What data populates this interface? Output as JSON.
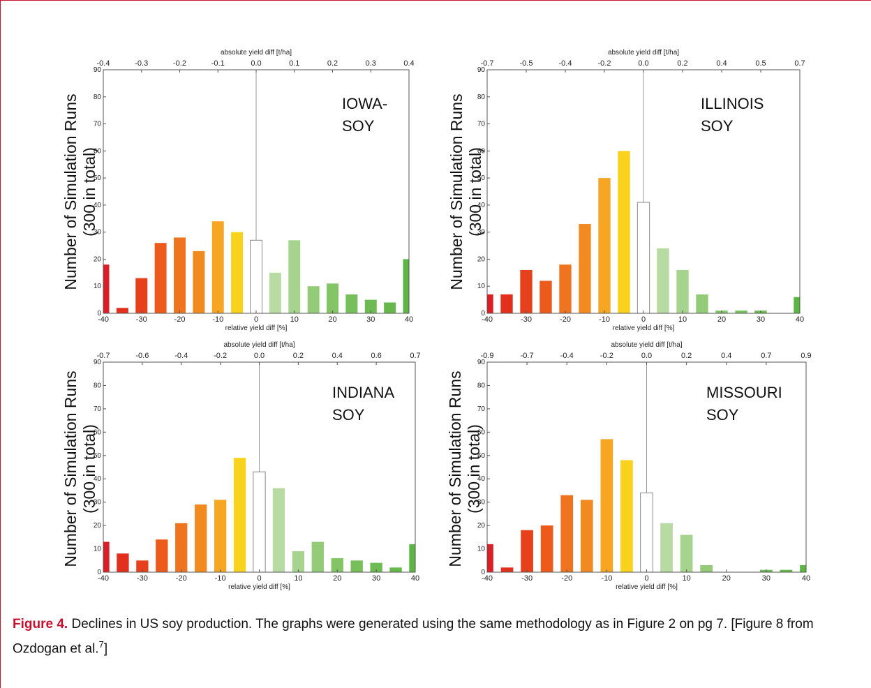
{
  "charts": [
    {
      "id": "iowa",
      "state_label": [
        "IOWA-",
        "SOY"
      ],
      "ylabel": [
        "Number of Simulation Runs",
        "(300 in total)"
      ],
      "top_xlabel": "absolute yield diff [t/ha]",
      "top_ticks": [
        "-0.4",
        "-0.3",
        "-0.2",
        "-0.1",
        "0.0",
        "0.1",
        "0.2",
        "0.3",
        "0.4"
      ],
      "bottom_xlabel": "relative yield diff [%]"
    },
    {
      "id": "illinois",
      "state_label": [
        "ILLINOIS",
        "SOY"
      ],
      "ylabel": [
        "Number of Simulation Runs",
        "(300 in total)"
      ],
      "top_xlabel": "absolute yield diff [t/ha]",
      "top_ticks": [
        "-0.7",
        "-0.5",
        "-0.4",
        "-0.2",
        "0.0",
        "0.2",
        "0.4",
        "0.5",
        "0.7"
      ],
      "bottom_xlabel": "relative yield diff [%]"
    },
    {
      "id": "indiana",
      "state_label": [
        "INDIANA",
        "SOY"
      ],
      "ylabel": [
        "Number of Simulation Runs",
        "(300 in total)"
      ],
      "top_xlabel": "absolute yield diff [t/ha]",
      "top_ticks": [
        "-0.7",
        "-0.6",
        "-0.4",
        "-0.2",
        "0.0",
        "0.2",
        "0.4",
        "0.6",
        "0.7"
      ],
      "bottom_xlabel": "relative yield diff [%]"
    },
    {
      "id": "missouri",
      "state_label": [
        "MISSOURI",
        "SOY"
      ],
      "ylabel": [
        "Number of Simulation Runs",
        "(300 in total)"
      ],
      "top_xlabel": "absolute yield diff [t/ha]",
      "top_ticks": [
        "-0.9",
        "-0.7",
        "-0.4",
        "-0.2",
        "0.0",
        "0.2",
        "0.4",
        "0.7",
        "0.9"
      ],
      "bottom_xlabel": "relative yield diff [%]"
    }
  ],
  "chart_data": [
    {
      "type": "bar",
      "title": "IOWA- SOY",
      "xlabel": "relative yield diff [%]",
      "ylabel": "Number of Simulation Runs (300 in total)",
      "x2label": "absolute yield diff [t/ha]",
      "xlim": [
        -40,
        40
      ],
      "ylim": [
        0,
        90
      ],
      "xticks": [
        -40,
        -30,
        -20,
        -10,
        0,
        10,
        20,
        30,
        40
      ],
      "yticks": [
        0,
        10,
        20,
        30,
        40,
        50,
        60,
        70,
        80,
        90
      ],
      "x": [
        -40,
        -35,
        -30,
        -25,
        -20,
        -15,
        -10,
        -5,
        0,
        5,
        10,
        15,
        20,
        25,
        30,
        35,
        40
      ],
      "values": [
        18,
        2,
        13,
        26,
        28,
        23,
        34,
        30,
        27,
        15,
        27,
        10,
        11,
        7,
        5,
        4,
        20
      ],
      "colors": [
        "#dc1f26",
        "#e2301f",
        "#e6411c",
        "#ec5a1c",
        "#ef7420",
        "#f28a22",
        "#f6a623",
        "#f8d21d",
        "#ffffff",
        "#b7dba3",
        "#a6d48f",
        "#93cb78",
        "#82c466",
        "#76bf5b",
        "#6ebb53",
        "#66b74c",
        "#5db544"
      ],
      "grid": false,
      "legend": "none"
    },
    {
      "type": "bar",
      "title": "ILLINOIS SOY",
      "xlabel": "relative yield diff [%]",
      "ylabel": "Number of Simulation Runs (300 in total)",
      "x2label": "absolute yield diff [t/ha]",
      "xlim": [
        -40,
        40
      ],
      "ylim": [
        0,
        90
      ],
      "xticks": [
        -40,
        -30,
        -20,
        -10,
        0,
        10,
        20,
        30,
        40
      ],
      "yticks": [
        0,
        10,
        20,
        30,
        40,
        50,
        60,
        70,
        80,
        90
      ],
      "x": [
        -40,
        -35,
        -30,
        -25,
        -20,
        -15,
        -10,
        -5,
        0,
        5,
        10,
        15,
        20,
        25,
        30,
        35,
        40
      ],
      "values": [
        7,
        7,
        16,
        12,
        18,
        33,
        50,
        60,
        41,
        24,
        16,
        7,
        1,
        1,
        1,
        0,
        6
      ],
      "colors": [
        "#dc1f26",
        "#e2301f",
        "#e6411c",
        "#ec5a1c",
        "#ef7420",
        "#f28a22",
        "#f6a623",
        "#f8d21d",
        "#ffffff",
        "#b7dba3",
        "#a6d48f",
        "#93cb78",
        "#82c466",
        "#76bf5b",
        "#6ebb53",
        "#66b74c",
        "#5db544"
      ],
      "grid": false,
      "legend": "none"
    },
    {
      "type": "bar",
      "title": "INDIANA SOY",
      "xlabel": "relative yield diff [%]",
      "ylabel": "Number of Simulation Runs (300 in total)",
      "x2label": "absolute yield diff [t/ha]",
      "xlim": [
        -40,
        40
      ],
      "ylim": [
        0,
        90
      ],
      "xticks": [
        -40,
        -30,
        -20,
        -10,
        0,
        10,
        20,
        30,
        40
      ],
      "yticks": [
        0,
        10,
        20,
        30,
        40,
        50,
        60,
        70,
        80,
        90
      ],
      "x": [
        -40,
        -35,
        -30,
        -25,
        -20,
        -15,
        -10,
        -5,
        0,
        5,
        10,
        15,
        20,
        25,
        30,
        35,
        40
      ],
      "values": [
        13,
        8,
        5,
        14,
        21,
        29,
        31,
        49,
        43,
        36,
        9,
        13,
        6,
        5,
        4,
        2,
        12
      ],
      "colors": [
        "#dc1f26",
        "#e2301f",
        "#e6411c",
        "#ec5a1c",
        "#ef7420",
        "#f28a22",
        "#f6a623",
        "#f8d21d",
        "#ffffff",
        "#b7dba3",
        "#a6d48f",
        "#93cb78",
        "#82c466",
        "#76bf5b",
        "#6ebb53",
        "#66b74c",
        "#5db544"
      ],
      "grid": false,
      "legend": "none"
    },
    {
      "type": "bar",
      "title": "MISSOURI SOY",
      "xlabel": "relative yield diff [%]",
      "ylabel": "Number of Simulation Runs (300 in total)",
      "x2label": "absolute yield diff [t/ha]",
      "xlim": [
        -40,
        40
      ],
      "ylim": [
        0,
        90
      ],
      "xticks": [
        -40,
        -30,
        -20,
        -10,
        0,
        10,
        20,
        30,
        40
      ],
      "yticks": [
        0,
        10,
        20,
        30,
        40,
        50,
        60,
        70,
        80,
        90
      ],
      "x": [
        -40,
        -35,
        -30,
        -25,
        -20,
        -15,
        -10,
        -5,
        0,
        5,
        10,
        15,
        20,
        25,
        30,
        35,
        40
      ],
      "values": [
        12,
        2,
        18,
        20,
        33,
        31,
        57,
        48,
        34,
        21,
        16,
        3,
        0,
        0,
        1,
        1,
        3
      ],
      "colors": [
        "#dc1f26",
        "#e2301f",
        "#e6411c",
        "#ec5a1c",
        "#ef7420",
        "#f28a22",
        "#f6a623",
        "#f8d21d",
        "#ffffff",
        "#b7dba3",
        "#a6d48f",
        "#93cb78",
        "#82c466",
        "#76bf5b",
        "#6ebb53",
        "#66b74c",
        "#5db544"
      ],
      "grid": false,
      "legend": "none"
    }
  ],
  "caption": {
    "figure_number": "Figure 4.",
    "text": "Declines in US soy production.  The graphs were generated using the same methodology as in Figure 2 on pg 7.  [Figure 8 from Ozdogan et al.",
    "superscript": "7",
    "closing": "]"
  },
  "colors": {
    "frame": "#c8102e",
    "figure_number": "#c8102e"
  }
}
